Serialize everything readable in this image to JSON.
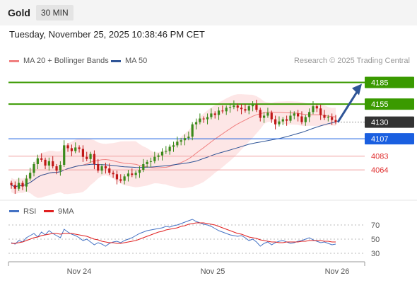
{
  "header": {
    "symbol": "Gold",
    "timeframe": "30 MIN"
  },
  "datetime": "Tuesday, November 25, 2025 10:38:46 PM CET",
  "legend": {
    "ma20": "MA 20 + Bollinger Bands",
    "ma50": "MA 50",
    "ma20_color": "#f08080",
    "ma50_color": "#2f5597"
  },
  "credit": "Research © 2025 Trading Central",
  "chart_data": [
    {
      "type": "candlestick",
      "title": "Gold",
      "y_ticks": [],
      "x_ticks": [
        "Nov 24",
        "Nov 25",
        "Nov 26"
      ],
      "price_range": [
        4025,
        4205
      ],
      "last_price": 4130,
      "levels": [
        {
          "label": "4185",
          "value": 4185,
          "kind": "resistance",
          "color": "#3a9a00"
        },
        {
          "label": "4155",
          "value": 4155,
          "kind": "resistance",
          "color": "#3a9a00"
        },
        {
          "label": "4130",
          "value": 4130,
          "kind": "last",
          "color": "#333333"
        },
        {
          "label": "4107",
          "value": 4107,
          "kind": "pivot",
          "color": "#1a5fe0"
        },
        {
          "label": "4083",
          "value": 4083,
          "kind": "support",
          "color": "#e03030"
        },
        {
          "label": "4064",
          "value": 4064,
          "kind": "support",
          "color": "#e03030"
        }
      ],
      "projection": {
        "from": 4130,
        "to": 4185,
        "color": "#2f5597"
      },
      "series": [
        {
          "name": "MA 20 + Bollinger Bands",
          "color": "#f08080"
        },
        {
          "name": "MA 50",
          "color": "#2f5597"
        }
      ],
      "closes": [
        4043,
        4038,
        4046,
        4041,
        4052,
        4060,
        4072,
        4080,
        4078,
        4070,
        4076,
        4069,
        4063,
        4071,
        4098,
        4094,
        4090,
        4095,
        4093,
        4082,
        4079,
        4086,
        4072,
        4063,
        4069,
        4066,
        4060,
        4058,
        4051,
        4049,
        4055,
        4059,
        4057,
        4060,
        4064,
        4072,
        4075,
        4076,
        4082,
        4084,
        4089,
        4090,
        4096,
        4098,
        4103,
        4105,
        4108,
        4110,
        4127,
        4130,
        4135,
        4134,
        4137,
        4142,
        4140,
        4146,
        4145,
        4150,
        4151,
        4153,
        4150,
        4148,
        4146,
        4152,
        4154,
        4147,
        4136,
        4139,
        4143,
        4134,
        4127,
        4131,
        4134,
        4132,
        4139,
        4142,
        4138,
        4130,
        4137,
        4144,
        4152,
        4149,
        4140,
        4136,
        4137,
        4133,
        4130
      ]
    },
    {
      "type": "line",
      "title": "RSI",
      "series": [
        {
          "name": "RSI",
          "color": "#4472c4"
        },
        {
          "name": "9MA",
          "color": "#e02020"
        }
      ],
      "ylim": [
        20,
        80
      ],
      "y_ticks": [
        70,
        50,
        30
      ],
      "rsi": [
        45,
        43,
        48,
        46,
        52,
        55,
        58,
        53,
        60,
        56,
        62,
        58,
        55,
        52,
        64,
        60,
        57,
        55,
        52,
        48,
        50,
        46,
        42,
        45,
        43,
        40,
        44,
        46,
        47,
        45,
        48,
        50,
        52,
        55,
        58,
        60,
        62,
        63,
        64,
        65,
        66,
        68,
        67,
        69,
        70,
        72,
        74,
        76,
        78,
        75,
        73,
        71,
        70,
        68,
        65,
        62,
        60,
        58,
        56,
        55,
        54,
        55,
        52,
        48,
        50,
        46,
        40,
        44,
        46,
        42,
        45,
        47,
        48,
        46,
        44,
        45,
        47,
        48,
        50,
        52,
        49,
        47,
        45,
        46,
        44,
        42,
        43
      ],
      "ma9": [
        44,
        44,
        45,
        46,
        48,
        50,
        52,
        53,
        55,
        56,
        57,
        58,
        58,
        57,
        58,
        58,
        58,
        57,
        56,
        55,
        54,
        52,
        50,
        49,
        47,
        46,
        45,
        45,
        44,
        44,
        45,
        46,
        47,
        48,
        50,
        52,
        54,
        56,
        58,
        60,
        61,
        63,
        64,
        65,
        66,
        68,
        69,
        71,
        72,
        73,
        73,
        73,
        72,
        71,
        70,
        68,
        66,
        64,
        62,
        60,
        58,
        57,
        55,
        53,
        52,
        51,
        49,
        48,
        47,
        46,
        46,
        45,
        45,
        46,
        46,
        46,
        46,
        47,
        47,
        48,
        48,
        48,
        48,
        47,
        47,
        46,
        46
      ]
    }
  ]
}
